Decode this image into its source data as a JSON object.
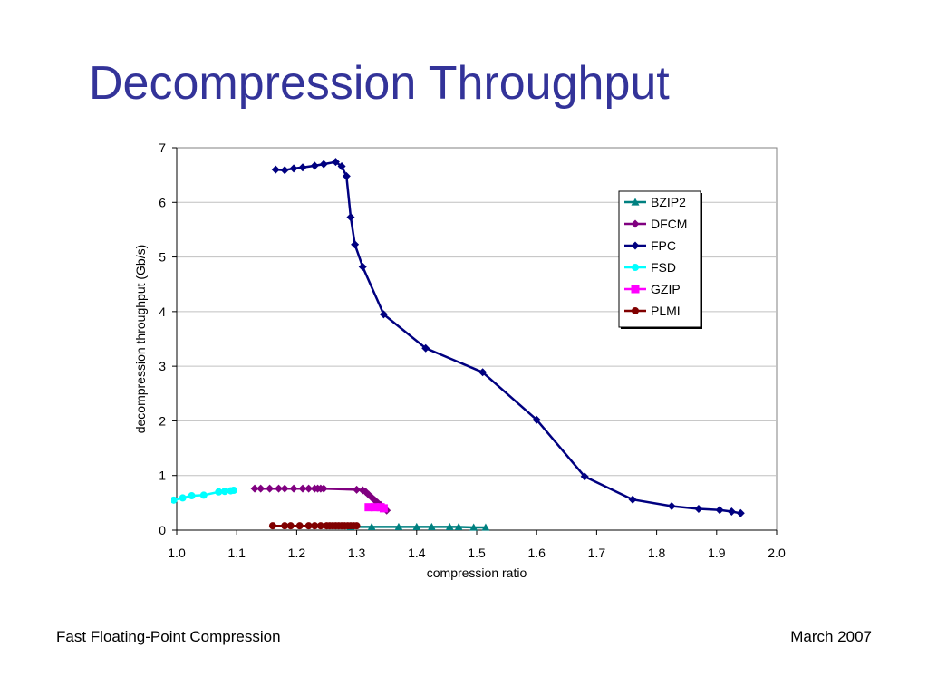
{
  "slide": {
    "title": "Decompression Throughput",
    "footer_left": "Fast Floating-Point Compression",
    "footer_right": "March 2007"
  },
  "colors": {
    "title": "#333399",
    "plot_border": "#808080",
    "gridline": "#c0c0c0"
  },
  "chart_data": {
    "type": "line",
    "title": "",
    "xlabel": "compression ratio",
    "ylabel": "decompression throughput (Gb/s)",
    "xlim": [
      1.0,
      2.0
    ],
    "ylim": [
      0,
      7
    ],
    "xticks": [
      "1.0",
      "1.1",
      "1.2",
      "1.3",
      "1.4",
      "1.5",
      "1.6",
      "1.7",
      "1.8",
      "1.9",
      "2.0"
    ],
    "yticks": [
      "0",
      "1",
      "2",
      "3",
      "4",
      "5",
      "6",
      "7"
    ],
    "grid": "horizontal",
    "legend_position": "top-right",
    "series": [
      {
        "name": "BZIP2",
        "color": "#008080",
        "marker": "triangle",
        "x": [
          1.29,
          1.325,
          1.37,
          1.4,
          1.425,
          1.455,
          1.47,
          1.495,
          1.515
        ],
        "y": [
          0.06,
          0.06,
          0.06,
          0.06,
          0.06,
          0.06,
          0.06,
          0.05,
          0.05
        ]
      },
      {
        "name": "DFCM",
        "color": "#800080",
        "marker": "diamond",
        "x": [
          1.13,
          1.14,
          1.155,
          1.17,
          1.18,
          1.195,
          1.21,
          1.22,
          1.23,
          1.235,
          1.24,
          1.245,
          1.3,
          1.31,
          1.315,
          1.32,
          1.325,
          1.33,
          1.335,
          1.34,
          1.345,
          1.35
        ],
        "y": [
          0.76,
          0.76,
          0.76,
          0.76,
          0.76,
          0.76,
          0.76,
          0.76,
          0.76,
          0.76,
          0.76,
          0.76,
          0.74,
          0.73,
          0.7,
          0.65,
          0.6,
          0.55,
          0.5,
          0.46,
          0.42,
          0.36
        ]
      },
      {
        "name": "FPC",
        "color": "#000080",
        "marker": "diamond",
        "x": [
          1.165,
          1.18,
          1.195,
          1.21,
          1.23,
          1.245,
          1.265,
          1.275,
          1.283,
          1.29,
          1.297,
          1.31,
          1.345,
          1.415,
          1.51,
          1.6,
          1.68,
          1.76,
          1.825,
          1.87,
          1.905,
          1.925,
          1.94
        ],
        "y": [
          6.6,
          6.59,
          6.62,
          6.64,
          6.67,
          6.7,
          6.74,
          6.66,
          6.48,
          5.73,
          5.23,
          4.82,
          3.95,
          3.33,
          2.89,
          2.02,
          0.98,
          0.56,
          0.44,
          0.39,
          0.37,
          0.34,
          0.31
        ]
      },
      {
        "name": "FSD",
        "color": "#00ffff",
        "marker": "circle",
        "x": [
          0.995,
          1.01,
          1.025,
          1.045,
          1.07,
          1.08,
          1.09,
          1.095
        ],
        "y": [
          0.55,
          0.59,
          0.63,
          0.64,
          0.7,
          0.71,
          0.72,
          0.73
        ]
      },
      {
        "name": "GZIP",
        "color": "#ff00ff",
        "marker": "square",
        "x": [
          1.32,
          1.33,
          1.34,
          1.345
        ],
        "y": [
          0.42,
          0.42,
          0.42,
          0.4
        ]
      },
      {
        "name": "PLMI",
        "color": "#800000",
        "marker": "circle",
        "x": [
          1.16,
          1.18,
          1.19,
          1.205,
          1.22,
          1.23,
          1.24,
          1.25,
          1.255,
          1.26,
          1.265,
          1.27,
          1.275,
          1.28,
          1.285,
          1.29,
          1.295,
          1.3
        ],
        "y": [
          0.08,
          0.08,
          0.08,
          0.08,
          0.08,
          0.08,
          0.08,
          0.08,
          0.08,
          0.08,
          0.08,
          0.08,
          0.08,
          0.08,
          0.08,
          0.08,
          0.08,
          0.08
        ]
      }
    ]
  }
}
